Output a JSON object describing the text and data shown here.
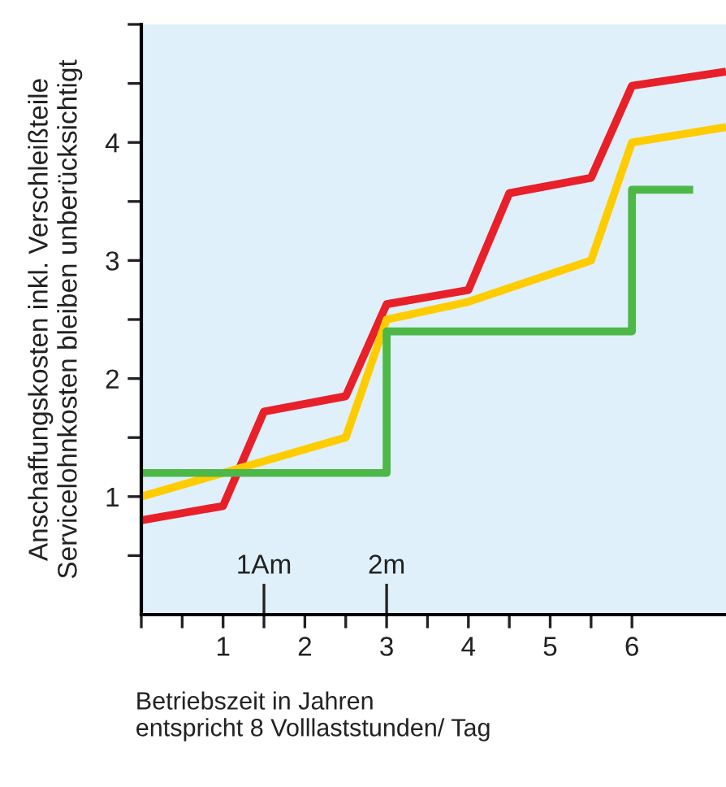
{
  "chart_data": {
    "type": "line",
    "xlabel": "Betriebszeit in Jahren\nentspricht 8 Volllaststunden/ Tag",
    "ylabel": "Anschaffungskosten inkl. Verschleißteile\nServicelohnkosten bleiben unberücksichtigt",
    "series": [
      {
        "color": "#e8202a",
        "x": [
          0,
          1,
          1.5,
          2.5,
          3,
          4,
          4.5,
          5.5,
          6,
          7.15
        ],
        "values": [
          0.8,
          0.92,
          1.72,
          1.85,
          2.63,
          2.75,
          3.57,
          3.7,
          4.48,
          4.6
        ]
      },
      {
        "color": "#ffcc00",
        "x": [
          0,
          2.5,
          3,
          4,
          5.5,
          6,
          7.15
        ],
        "values": [
          1.0,
          1.5,
          2.5,
          2.65,
          3.0,
          4.0,
          4.13
        ]
      },
      {
        "type": "step",
        "color": "#4db848",
        "x": [
          0,
          3,
          6,
          6.7
        ],
        "values": [
          1.2,
          2.4,
          3.6,
          3.6
        ]
      }
    ],
    "xlim": [
      0,
      7.15
    ],
    "ylim": [
      0,
      5
    ],
    "xticks": [
      {
        "value": 0,
        "label": null
      },
      {
        "value": 0.5,
        "label": null
      },
      1,
      {
        "value": 1.5,
        "label": null
      },
      2,
      {
        "value": 2.5,
        "label": null
      },
      3,
      {
        "value": 3.5,
        "label": null
      },
      4,
      {
        "value": 4.5,
        "label": null
      },
      5,
      {
        "value": 5.5,
        "label": null
      },
      6
    ],
    "yticks": [
      {
        "value": 0.5,
        "label": null
      },
      1,
      {
        "value": 1.5,
        "label": null
      },
      2,
      {
        "value": 2.5,
        "label": null
      },
      3,
      {
        "value": 3.5,
        "label": null
      },
      4,
      {
        "value": 4.5,
        "label": null
      },
      {
        "value": 5,
        "label": null
      }
    ],
    "ref_lines": [
      {
        "axis": "x",
        "value": 1.5,
        "label": "1Am"
      },
      {
        "axis": "x",
        "value": 3,
        "label": "2m"
      }
    ],
    "grid": false,
    "line_style": "solid",
    "marker": "none"
  }
}
